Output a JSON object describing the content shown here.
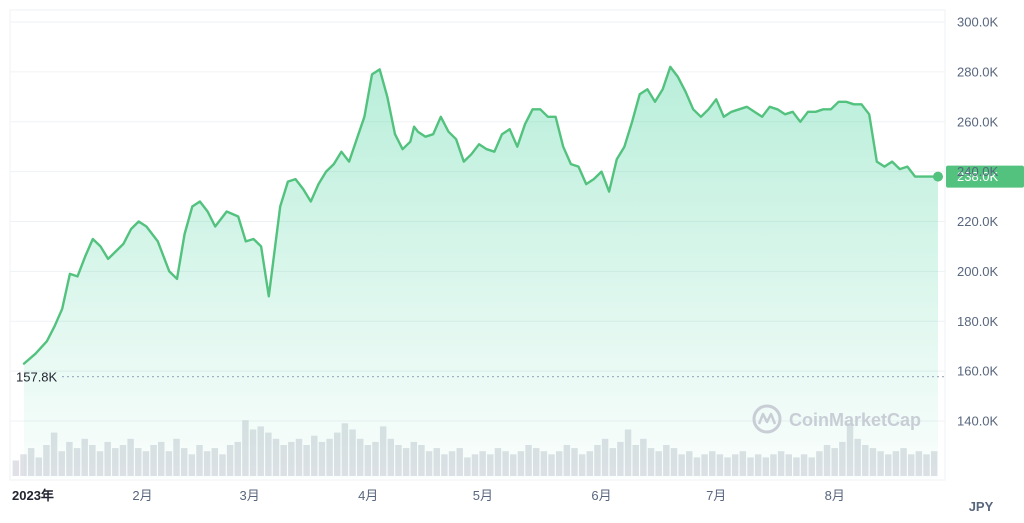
{
  "chart_data": {
    "type": "area",
    "currency": "JPY",
    "watermark": "CoinMarketCap",
    "line_color": "#52c27e",
    "fill_color": "#16c784",
    "volume_color": "#d4d7dd",
    "ylim": [
      120000,
      305000
    ],
    "y_ticks": [
      "300.0K",
      "280.0K",
      "260.0K",
      "240.0K",
      "220.0K",
      "200.0K",
      "180.0K",
      "160.0K",
      "140.0K"
    ],
    "y_tick_values": [
      300000,
      280000,
      260000,
      240000,
      220000,
      200000,
      180000,
      160000,
      140000
    ],
    "x_ticks": [
      "2023年",
      "2月",
      "3月",
      "4月",
      "5月",
      "6月",
      "7月",
      "8月"
    ],
    "x_tick_values": [
      0,
      31,
      59,
      90,
      120,
      151,
      181,
      212
    ],
    "low_label": "157.8K",
    "low_value": 157800,
    "last_label": "238.0K",
    "last_value": 238000,
    "x": [
      0,
      3,
      6,
      8,
      10,
      12,
      14,
      16,
      18,
      20,
      22,
      24,
      26,
      28,
      30,
      32,
      35,
      38,
      40,
      42,
      44,
      46,
      48,
      50,
      53,
      56,
      58,
      60,
      62,
      64,
      67,
      69,
      71,
      73,
      75,
      77,
      79,
      81,
      83,
      85,
      87,
      89,
      91,
      93,
      95,
      97,
      99,
      101,
      102,
      103,
      105,
      107,
      109,
      111,
      113,
      115,
      117,
      119,
      121,
      123,
      125,
      127,
      129,
      131,
      133,
      135,
      137,
      139,
      141,
      143,
      145,
      147,
      149,
      151,
      153,
      155,
      157,
      159,
      161,
      163,
      165,
      167,
      169,
      171,
      173,
      175,
      177,
      179,
      181,
      183,
      185,
      187,
      189,
      191,
      193,
      195,
      197,
      199,
      201,
      203,
      205,
      207,
      209,
      211,
      213,
      215,
      217,
      219,
      221,
      223,
      225,
      227,
      229,
      231,
      233,
      234,
      235,
      236,
      237,
      238,
      239
    ],
    "y": [
      163000,
      167000,
      172000,
      178000,
      185000,
      199000,
      198000,
      206000,
      213000,
      210000,
      205000,
      208000,
      211000,
      217000,
      220000,
      218000,
      212000,
      200000,
      197000,
      215000,
      226000,
      228000,
      224000,
      218000,
      224000,
      222000,
      212000,
      213000,
      210000,
      190000,
      226000,
      236000,
      237000,
      233000,
      228000,
      235000,
      240000,
      243000,
      248000,
      244000,
      253000,
      262000,
      279000,
      281000,
      270000,
      255000,
      249000,
      252000,
      258000,
      256000,
      254000,
      255000,
      262000,
      256000,
      253000,
      244000,
      247000,
      251000,
      249000,
      248000,
      255000,
      257000,
      250000,
      259000,
      265000,
      265000,
      262000,
      262000,
      250000,
      243000,
      242000,
      235000,
      237000,
      240000,
      232000,
      245000,
      250000,
      260000,
      271000,
      273000,
      268000,
      273000,
      282000,
      278000,
      272000,
      265000,
      262000,
      265000,
      269000,
      262000,
      264000,
      265000,
      266000,
      264000,
      262000,
      266000,
      265000,
      263000,
      264000,
      260000,
      264000,
      264000,
      265000,
      265000,
      268000,
      268000,
      267000,
      267000,
      263000,
      244000,
      242000,
      244000,
      241000,
      242000,
      238000,
      238000,
      238000,
      238000,
      238000,
      238000,
      238000
    ],
    "volume": [
      0.25,
      0.35,
      0.45,
      0.3,
      0.5,
      0.7,
      0.4,
      0.55,
      0.45,
      0.6,
      0.5,
      0.4,
      0.55,
      0.45,
      0.5,
      0.6,
      0.45,
      0.4,
      0.5,
      0.55,
      0.4,
      0.6,
      0.45,
      0.35,
      0.5,
      0.4,
      0.45,
      0.35,
      0.5,
      0.55,
      0.9,
      0.75,
      0.8,
      0.7,
      0.6,
      0.5,
      0.55,
      0.6,
      0.5,
      0.65,
      0.55,
      0.6,
      0.7,
      0.85,
      0.75,
      0.6,
      0.5,
      0.55,
      0.8,
      0.6,
      0.5,
      0.45,
      0.55,
      0.5,
      0.4,
      0.45,
      0.35,
      0.4,
      0.45,
      0.3,
      0.35,
      0.4,
      0.35,
      0.45,
      0.4,
      0.35,
      0.4,
      0.5,
      0.45,
      0.4,
      0.35,
      0.4,
      0.5,
      0.45,
      0.35,
      0.4,
      0.5,
      0.6,
      0.45,
      0.55,
      0.75,
      0.5,
      0.6,
      0.45,
      0.4,
      0.5,
      0.45,
      0.35,
      0.4,
      0.3,
      0.35,
      0.4,
      0.35,
      0.3,
      0.35,
      0.4,
      0.3,
      0.35,
      0.3,
      0.35,
      0.4,
      0.35,
      0.3,
      0.35,
      0.3,
      0.4,
      0.5,
      0.45,
      0.55,
      0.85,
      0.6,
      0.5,
      0.45,
      0.4,
      0.35,
      0.4,
      0.45,
      0.35,
      0.4,
      0.35,
      0.4
    ]
  }
}
